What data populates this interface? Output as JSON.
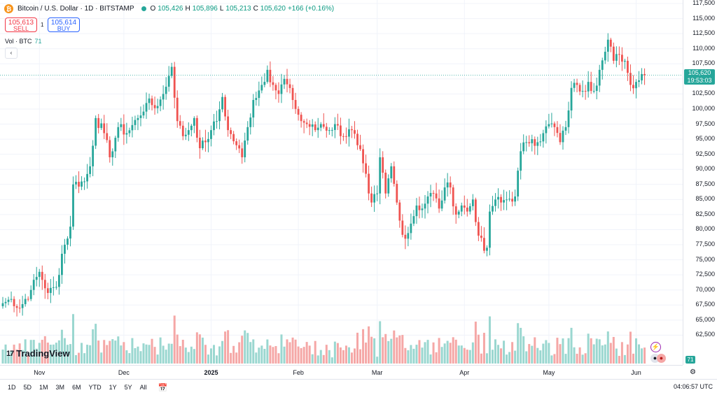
{
  "header": {
    "coin_symbol": "₿",
    "title": "Bitcoin / U.S. Dollar · 1D · BITSTAMP",
    "open_label": "O",
    "open": "105,426",
    "high_label": "H",
    "high": "105,896",
    "low_label": "L",
    "low": "105,213",
    "close_label": "C",
    "close": "105,620",
    "change": "+166 (+0.16%)"
  },
  "trade": {
    "sell_price": "105,613",
    "sell_label": "SELL",
    "spread": "1",
    "buy_price": "105,614",
    "buy_label": "BUY"
  },
  "volume_legend": {
    "label": "Vol · BTC",
    "value": "71"
  },
  "collapse_icon": "‹",
  "last_price": {
    "price": "105,620",
    "countdown": "19:53:03"
  },
  "volume_tag": "71",
  "logo": {
    "mark": "17",
    "text": "TradingView"
  },
  "bottom_bar": {
    "ranges": [
      "1D",
      "5D",
      "1M",
      "3M",
      "6M",
      "YTD",
      "1Y",
      "5Y",
      "All"
    ],
    "calendar_icon": "calendar-icon",
    "clock": "04:06:57 UTC"
  },
  "colors": {
    "up": "#26a69a",
    "down": "#ef5350",
    "up_vol": "#9ad7d0",
    "down_vol": "#f5a7a6"
  },
  "chart_data": {
    "type": "candlestick",
    "title": "Bitcoin / U.S. Dollar · 1D · BITSTAMP",
    "ylim": [
      60000,
      117500
    ],
    "y_ticks": [
      "117,500",
      "115,000",
      "112,500",
      "110,000",
      "107,500",
      "105,000",
      "102,500",
      "100,000",
      "97,500",
      "95,000",
      "92,500",
      "90,000",
      "87,500",
      "85,000",
      "82,500",
      "80,000",
      "77,500",
      "75,000",
      "72,500",
      "70,000",
      "67,500",
      "65,000",
      "62,500"
    ],
    "y_tick_values": [
      117500,
      115000,
      112500,
      110000,
      107500,
      105000,
      102500,
      100000,
      97500,
      95000,
      92500,
      90000,
      87500,
      85000,
      82500,
      80000,
      77500,
      75000,
      72500,
      70000,
      67500,
      65000,
      62500
    ],
    "x_ticks": [
      {
        "label": "Nov",
        "index": 13,
        "bold": false
      },
      {
        "label": "Dec",
        "index": 43,
        "bold": false
      },
      {
        "label": "2025",
        "index": 74,
        "bold": true
      },
      {
        "label": "Feb",
        "index": 105,
        "bold": false
      },
      {
        "label": "Mar",
        "index": 133,
        "bold": false
      },
      {
        "label": "Apr",
        "index": 164,
        "bold": false
      },
      {
        "label": "May",
        "index": 194,
        "bold": false
      },
      {
        "label": "Jun",
        "index": 225,
        "bold": false
      }
    ],
    "close_anchors": [
      [
        0,
        67800
      ],
      [
        3,
        68500
      ],
      [
        6,
        67000
      ],
      [
        10,
        70000
      ],
      [
        13,
        73000
      ],
      [
        16,
        69500
      ],
      [
        19,
        70500
      ],
      [
        21,
        76000
      ],
      [
        24,
        80500
      ],
      [
        25,
        87500
      ],
      [
        29,
        88000
      ],
      [
        31,
        90500
      ],
      [
        33,
        98500
      ],
      [
        36,
        96000
      ],
      [
        38,
        92000
      ],
      [
        41,
        97000
      ],
      [
        44,
        96000
      ],
      [
        48,
        98500
      ],
      [
        51,
        101000
      ],
      [
        55,
        100500
      ],
      [
        57,
        102500
      ],
      [
        59,
        105500
      ],
      [
        60,
        107000
      ],
      [
        62,
        98000
      ],
      [
        64,
        95500
      ],
      [
        66,
        96500
      ],
      [
        68,
        98500
      ],
      [
        70,
        93500
      ],
      [
        72,
        94500
      ],
      [
        74,
        96500
      ],
      [
        76,
        98000
      ],
      [
        78,
        102000
      ],
      [
        80,
        96500
      ],
      [
        83,
        94000
      ],
      [
        85,
        92000
      ],
      [
        87,
        97000
      ],
      [
        89,
        101500
      ],
      [
        92,
        104000
      ],
      [
        94,
        106500
      ],
      [
        96,
        104000
      ],
      [
        98,
        102500
      ],
      [
        100,
        105000
      ],
      [
        103,
        101500
      ],
      [
        106,
        98000
      ],
      [
        108,
        97500
      ],
      [
        111,
        96500
      ],
      [
        113,
        97500
      ],
      [
        116,
        96500
      ],
      [
        118,
        97500
      ],
      [
        121,
        95500
      ],
      [
        124,
        96500
      ],
      [
        126,
        94000
      ],
      [
        128,
        91000
      ],
      [
        130,
        86000
      ],
      [
        131,
        84500
      ],
      [
        133,
        86000
      ],
      [
        134,
        92000
      ],
      [
        136,
        86000
      ],
      [
        138,
        90500
      ],
      [
        140,
        84500
      ],
      [
        141,
        81500
      ],
      [
        143,
        78500
      ],
      [
        145,
        81000
      ],
      [
        147,
        84000
      ],
      [
        149,
        83500
      ],
      [
        151,
        85500
      ],
      [
        153,
        86000
      ],
      [
        155,
        83500
      ],
      [
        157,
        87000
      ],
      [
        159,
        87000
      ],
      [
        161,
        82500
      ],
      [
        163,
        84000
      ],
      [
        165,
        83000
      ],
      [
        167,
        85000
      ],
      [
        169,
        79000
      ],
      [
        171,
        76500
      ],
      [
        172,
        77000
      ],
      [
        173,
        83000
      ],
      [
        175,
        85000
      ],
      [
        177,
        84500
      ],
      [
        179,
        85000
      ],
      [
        182,
        85500
      ],
      [
        184,
        93000
      ],
      [
        186,
        94500
      ],
      [
        188,
        95000
      ],
      [
        190,
        94500
      ],
      [
        192,
        96000
      ],
      [
        194,
        97500
      ],
      [
        196,
        97000
      ],
      [
        198,
        94500
      ],
      [
        200,
        97000
      ],
      [
        202,
        103500
      ],
      [
        204,
        104000
      ],
      [
        206,
        103000
      ],
      [
        208,
        104500
      ],
      [
        210,
        103000
      ],
      [
        212,
        106500
      ],
      [
        214,
        109500
      ],
      [
        215,
        111500
      ],
      [
        217,
        108000
      ],
      [
        219,
        109000
      ],
      [
        221,
        108000
      ],
      [
        223,
        104000
      ],
      [
        225,
        104500
      ],
      [
        227,
        105800
      ],
      [
        228,
        105620
      ]
    ],
    "volume_note": "daily volume bars (BTC), relative scale",
    "last_close": 105620
  }
}
